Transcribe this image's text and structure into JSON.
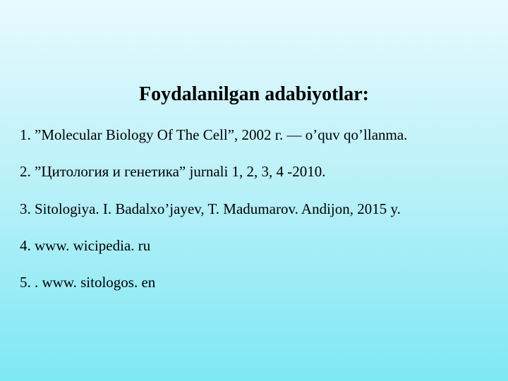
{
  "slide": {
    "title": "Foydalanilgan adabiyotlar:",
    "title_fontsize": 28,
    "title_fontweight": "bold",
    "item_fontsize": 21,
    "text_color": "#000000",
    "background_gradient": [
      "#e8faff",
      "#b8f0f8",
      "#7ee8f5"
    ],
    "font_family": "Times New Roman",
    "items": [
      "1. ”Molecular Biology Of The Cell”, 2002 г. — o’quv qo’llanma.",
      "2. ”Цитология и генетика” jurnali 1, 2, 3, 4 -2010.",
      "3. Sitologiya. I. Badalxo’jayev, T. Madumarov. Andijon, 2015 y.",
      "4. www. wicipedia. ru",
      "5. . www. sitologos. en"
    ]
  }
}
